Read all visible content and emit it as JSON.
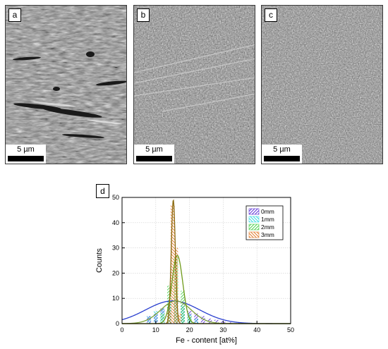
{
  "panels": [
    {
      "label": "a",
      "scale": "5 µm"
    },
    {
      "label": "b",
      "scale": "5 µm"
    },
    {
      "label": "c",
      "scale": "5 µm"
    }
  ],
  "chart_panel_label": "d",
  "chart_data": {
    "type": "bar",
    "xlabel": "Fe - content [at%]",
    "ylabel": "Counts",
    "xlim": [
      0,
      50
    ],
    "ylim": [
      0,
      50
    ],
    "xticks": [
      0,
      10,
      20,
      30,
      40,
      50
    ],
    "yticks": [
      0,
      10,
      20,
      30,
      40,
      50
    ],
    "legend_position": "top-right",
    "series": [
      {
        "name": "0mm",
        "color": "#5a2fd6",
        "x": [
          8,
          10,
          12,
          14,
          16,
          18,
          20,
          22,
          24,
          26,
          28,
          30,
          32,
          35
        ],
        "values": [
          3,
          4,
          6,
          9,
          10,
          8,
          5,
          4,
          3,
          2,
          1.5,
          1,
          0.5,
          0.5
        ],
        "fit": {
          "mu": 15,
          "sigma": 8,
          "peak": 9
        }
      },
      {
        "name": "1mm",
        "color": "#38d9e0",
        "x": [
          8,
          10,
          12,
          14,
          16,
          18,
          20,
          22
        ],
        "values": [
          3,
          5,
          6,
          9,
          9,
          7,
          4,
          2
        ],
        "fit": {
          "mu": 16,
          "sigma": 4.5,
          "peak": 9
        }
      },
      {
        "name": "2mm",
        "color": "#48d04a",
        "x": [
          12,
          14,
          16,
          18,
          20
        ],
        "values": [
          4,
          15,
          26,
          13,
          3
        ],
        "fit": {
          "mu": 16.4,
          "sigma": 1.6,
          "peak": 27
        }
      },
      {
        "name": "3mm",
        "color": "#e07a2a",
        "x": [
          14,
          15,
          16,
          17
        ],
        "values": [
          5,
          47,
          30,
          4
        ],
        "fit": {
          "mu": 15.2,
          "sigma": 0.6,
          "peak": 49
        }
      }
    ]
  }
}
